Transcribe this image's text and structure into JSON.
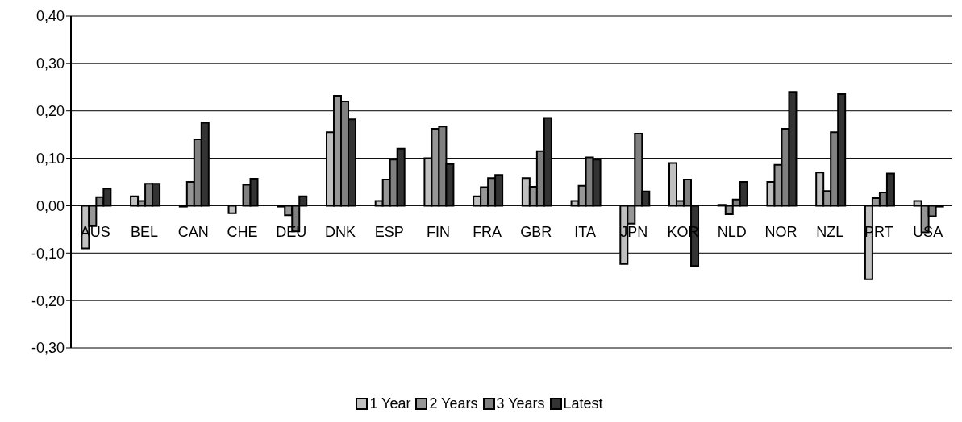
{
  "chart_data": {
    "type": "bar",
    "categories": [
      "AUS",
      "BEL",
      "CAN",
      "CHE",
      "DEU",
      "DNK",
      "ESP",
      "FIN",
      "FRA",
      "GBR",
      "ITA",
      "JPN",
      "KOR",
      "NLD",
      "NOR",
      "NZL",
      "PRT",
      "USA"
    ],
    "series": [
      {
        "name": "1 Year",
        "color": "#c0c0c0",
        "values": [
          -0.09,
          0.02,
          -0.002,
          -0.016,
          -0.002,
          0.155,
          0.01,
          0.1,
          0.02,
          0.058,
          0.01,
          -0.123,
          0.09,
          0.002,
          0.05,
          0.07,
          -0.155,
          0.01
        ]
      },
      {
        "name": "2 Years",
        "color": "#969696",
        "values": [
          -0.043,
          0.01,
          0.05,
          0,
          -0.02,
          0.232,
          0.055,
          0.162,
          0.039,
          0.04,
          0.042,
          -0.038,
          0.01,
          -0.018,
          0.086,
          0.031,
          0.016,
          -0.056
        ]
      },
      {
        "name": "3 Years",
        "color": "#808080",
        "values": [
          0.018,
          0.046,
          0.14,
          0.044,
          -0.054,
          0.22,
          0.097,
          0.167,
          0.058,
          0.115,
          0.102,
          0.152,
          0.055,
          0.013,
          0.162,
          0.155,
          0.028,
          -0.022
        ]
      },
      {
        "name": "Latest",
        "color": "#333333",
        "values": [
          0.036,
          0.046,
          0.175,
          0.057,
          0.02,
          0.182,
          0.12,
          0.088,
          0.065,
          0.185,
          0.097,
          0.03,
          -0.127,
          0.05,
          0.24,
          0.235,
          0.068,
          -0.002
        ]
      }
    ],
    "ylim": [
      -0.3,
      0.4
    ],
    "yticks": [
      {
        "value": -0.3,
        "label": "-0,30"
      },
      {
        "value": -0.2,
        "label": "-0,20"
      },
      {
        "value": -0.1,
        "label": "-0,10"
      },
      {
        "value": 0,
        "label": "0,00"
      },
      {
        "value": 0.1,
        "label": "0,10"
      },
      {
        "value": 0.2,
        "label": "0,20"
      },
      {
        "value": 0.3,
        "label": "0,30"
      },
      {
        "value": 0.4,
        "label": "0,40"
      }
    ],
    "grid": "y",
    "legend": "bottom"
  }
}
